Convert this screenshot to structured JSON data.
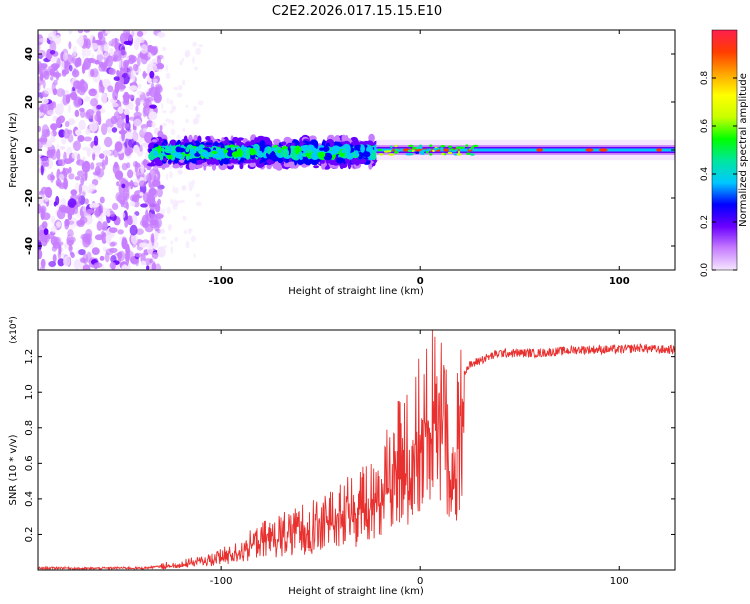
{
  "figure_title": "C2E2.2026.017.15.15.E10",
  "chart_data": [
    {
      "type": "heatmap",
      "title": "C2E2.2026.017.15.15.E10",
      "xlabel": "Height of straight line (km)",
      "ylabel": "Frequency (Hz)",
      "xlim": [
        -192,
        128
      ],
      "ylim": [
        -50,
        50
      ],
      "x_ticks": [
        -100,
        0,
        100
      ],
      "x_tick_labels": [
        "-100",
        "0",
        "100"
      ],
      "y_ticks": [
        -40,
        -20,
        0,
        20,
        40
      ],
      "y_tick_labels": [
        "-40",
        "-20",
        "0",
        "20",
        "40"
      ],
      "colorbar": {
        "label": "Normalized spectral amplitude",
        "range": [
          0.0,
          1.0
        ],
        "ticks": [
          0.0,
          0.2,
          0.4,
          0.6,
          0.8
        ],
        "tick_labels": [
          "0.0",
          "0.2",
          "0.4",
          "0.6",
          "0.8"
        ],
        "stops": [
          "#f5e6ff",
          "#c77dff",
          "#6a00ff",
          "#0000ff",
          "#00c8ff",
          "#00e6a0",
          "#00ff00",
          "#c8ff00",
          "#ffff00",
          "#ffa500",
          "#ff3c00",
          "#ff1f4f"
        ]
      },
      "regions": [
        {
          "label": "scattered noise",
          "x_range": [
            -192,
            -130
          ],
          "freq_range": [
            -50,
            50
          ]
        },
        {
          "label": "noisy signal band",
          "x_range": [
            -135,
            -22
          ],
          "freq_half_width": 6
        },
        {
          "label": "narrow signal band",
          "x_range": [
            -22,
            128
          ],
          "freq_half_width": 2.5
        }
      ]
    },
    {
      "type": "line",
      "xlabel": "Height of straight line (km)",
      "ylabel": "SNR (10 * v/v)",
      "y_scale_label": "(x10⁴)",
      "xlim": [
        -192,
        128
      ],
      "ylim": [
        0,
        1.35
      ],
      "x_ticks": [
        -100,
        0,
        100
      ],
      "x_tick_labels": [
        "-100",
        "0",
        "100"
      ],
      "y_ticks": [
        0.2,
        0.4,
        0.6,
        0.8,
        1.0,
        1.2
      ],
      "y_tick_labels": [
        "0.2",
        "0.4",
        "0.6",
        "0.8",
        "1.0",
        "1.2"
      ],
      "line_color": "#e8312f",
      "series": [
        {
          "name": "SNR",
          "x": [
            -192,
            -180,
            -170,
            -160,
            -150,
            -140,
            -135,
            -130,
            -125,
            -120,
            -115,
            -110,
            -105,
            -100,
            -95,
            -90,
            -85,
            -80,
            -75,
            -70,
            -65,
            -60,
            -55,
            -50,
            -45,
            -40,
            -35,
            -30,
            -25,
            -22,
            -20,
            -18,
            -15,
            -12,
            -10,
            -8,
            -5,
            -2,
            0,
            2,
            5,
            8,
            10,
            12,
            15,
            17,
            20,
            25,
            30,
            35,
            40,
            50,
            60,
            70,
            80,
            90,
            100,
            110,
            120,
            128
          ],
          "y": [
            0.01,
            0.012,
            0.008,
            0.01,
            0.012,
            0.01,
            0.015,
            0.02,
            0.03,
            0.04,
            0.05,
            0.06,
            0.07,
            0.09,
            0.11,
            0.14,
            0.17,
            0.2,
            0.22,
            0.24,
            0.26,
            0.28,
            0.3,
            0.33,
            0.36,
            0.38,
            0.4,
            0.43,
            0.46,
            0.5,
            0.55,
            0.6,
            0.65,
            0.7,
            0.75,
            0.8,
            0.85,
            0.9,
            0.92,
            0.95,
            1.0,
            1.02,
            1.05,
            1.08,
            0.55,
            0.6,
            1.1,
            1.15,
            1.18,
            1.2,
            1.22,
            1.22,
            1.22,
            1.23,
            1.24,
            1.24,
            1.24,
            1.25,
            1.24,
            1.24
          ]
        }
      ]
    }
  ]
}
